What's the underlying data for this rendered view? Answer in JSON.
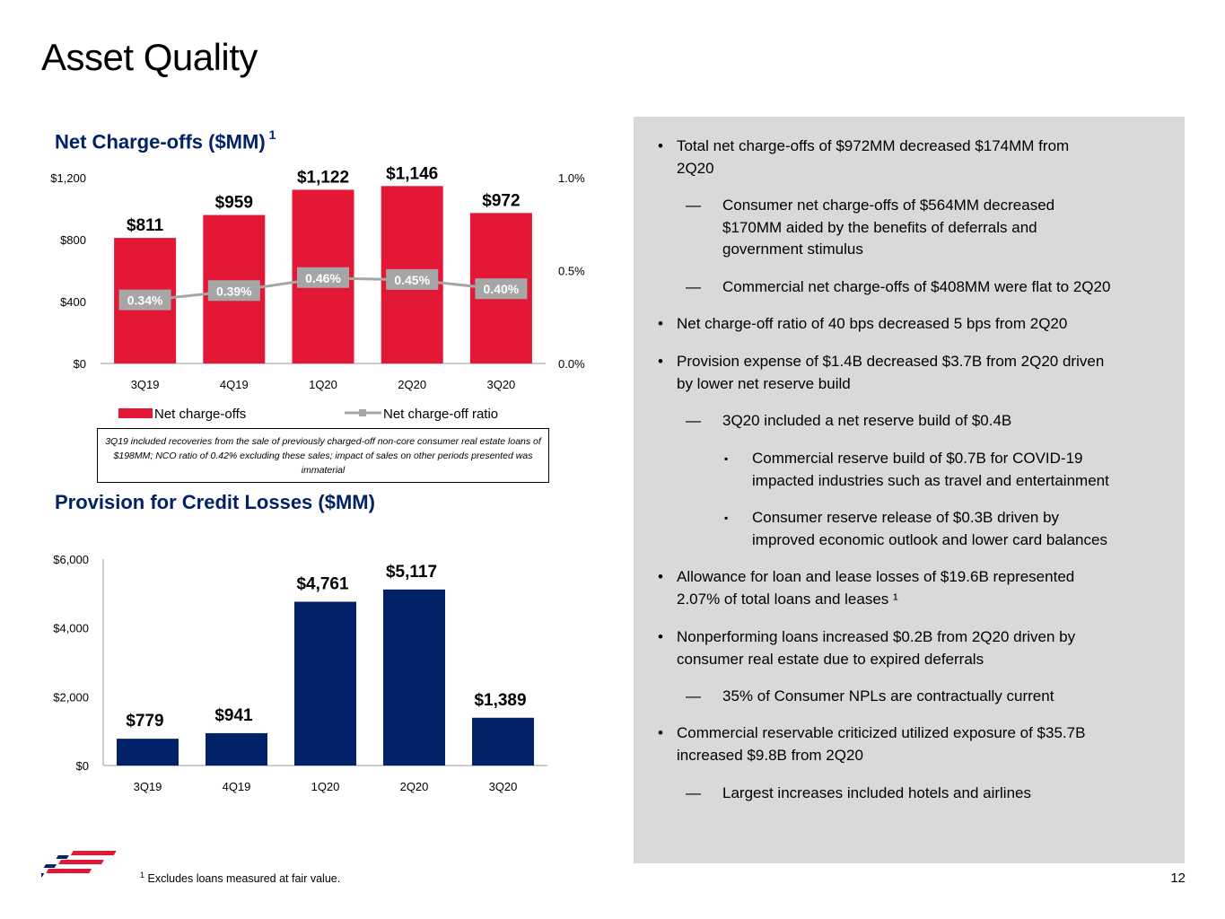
{
  "page": {
    "title": "Asset Quality",
    "page_number": "12",
    "footnote_marker": "1",
    "footnote": "Excludes loans measured at fair value."
  },
  "colors": {
    "red": "#E31837",
    "navy": "#012169",
    "panel": "#D9D9D9",
    "ratio_line": "#A6A6A6"
  },
  "chart_data": [
    {
      "type": "bar",
      "title": "Net Charge-offs ($MM)",
      "title_superscript": "1",
      "categories": [
        "3Q19",
        "4Q19",
        "1Q20",
        "2Q20",
        "3Q20"
      ],
      "series": [
        {
          "name": "Net charge-offs",
          "values": [
            811,
            959,
            1122,
            1146,
            972
          ],
          "labels": [
            "$811",
            "$959",
            "$1,122",
            "$1,146",
            "$972"
          ],
          "axis": "left"
        },
        {
          "name": "Net charge-off ratio",
          "type": "line",
          "values": [
            0.34,
            0.39,
            0.46,
            0.45,
            0.4
          ],
          "labels": [
            "0.34%",
            "0.39%",
            "0.46%",
            "0.45%",
            "0.40%"
          ],
          "axis": "right"
        }
      ],
      "ylim": [
        0,
        1200
      ],
      "yticks": [
        0,
        400,
        800,
        1200
      ],
      "ytick_labels": [
        "$0",
        "$400",
        "$800",
        "$1,200"
      ],
      "y2lim": [
        0,
        1.0
      ],
      "y2ticks": [
        0,
        0.5,
        1.0
      ],
      "y2tick_labels": [
        "0.0%",
        "0.5%",
        "1.0%"
      ],
      "legend": [
        "Net charge-offs",
        "Net charge-off ratio"
      ],
      "legend_position": "bottom",
      "note": "3Q19 included recoveries from the sale of previously charged-off non-core consumer real estate loans of $198MM; NCO ratio of 0.42% excluding these sales; impact of sales on other periods presented was immaterial"
    },
    {
      "type": "bar",
      "title": "Provision for Credit Losses ($MM)",
      "categories": [
        "3Q19",
        "4Q19",
        "1Q20",
        "2Q20",
        "3Q20"
      ],
      "values": [
        779,
        941,
        4761,
        5117,
        1389
      ],
      "labels": [
        "$779",
        "$941",
        "$4,761",
        "$5,117",
        "$1,389"
      ],
      "ylim": [
        0,
        6000
      ],
      "yticks": [
        0,
        2000,
        4000,
        6000
      ],
      "ytick_labels": [
        "$0",
        "$2,000",
        "$4,000",
        "$6,000"
      ]
    }
  ],
  "bullets": [
    {
      "level": 1,
      "marker": "•",
      "text": "Total net charge-offs of $972MM decreased $174MM from\n2Q20"
    },
    {
      "level": 2,
      "marker": "—",
      "text": "Consumer net charge-offs of $564MM decreased\n$170MM aided by the benefits of deferrals and\ngovernment stimulus"
    },
    {
      "level": 2,
      "marker": "—",
      "text": "Commercial net charge-offs of $408MM were flat to 2Q20"
    },
    {
      "level": 1,
      "marker": "•",
      "text": "Net charge-off ratio of 40 bps decreased 5 bps from 2Q20"
    },
    {
      "level": 1,
      "marker": "•",
      "text": "Provision expense of $1.4B decreased $3.7B from 2Q20 driven\nby lower net reserve build"
    },
    {
      "level": 2,
      "marker": "—",
      "text": "3Q20 included a net reserve build of $0.4B"
    },
    {
      "level": 3,
      "marker": "▪",
      "text": "Commercial reserve build of $0.7B for COVID-19\nimpacted industries such as travel and entertainment"
    },
    {
      "level": 3,
      "marker": "▪",
      "text": "Consumer reserve release of $0.3B driven by\nimproved economic outlook and lower card balances"
    },
    {
      "level": 1,
      "marker": "•",
      "text": "Allowance for loan and lease losses of $19.6B represented\n2.07% of total loans and leases ¹"
    },
    {
      "level": 1,
      "marker": "•",
      "text": "Nonperforming loans increased $0.2B from 2Q20 driven by\nconsumer real estate due to expired deferrals"
    },
    {
      "level": 2,
      "marker": "—",
      "text": "35% of Consumer NPLs are contractually current"
    },
    {
      "level": 1,
      "marker": "•",
      "text": "Commercial reservable criticized utilized exposure of $35.7B\nincreased $9.8B from 2Q20"
    },
    {
      "level": 2,
      "marker": "—",
      "text": "Largest increases included hotels and airlines"
    }
  ]
}
